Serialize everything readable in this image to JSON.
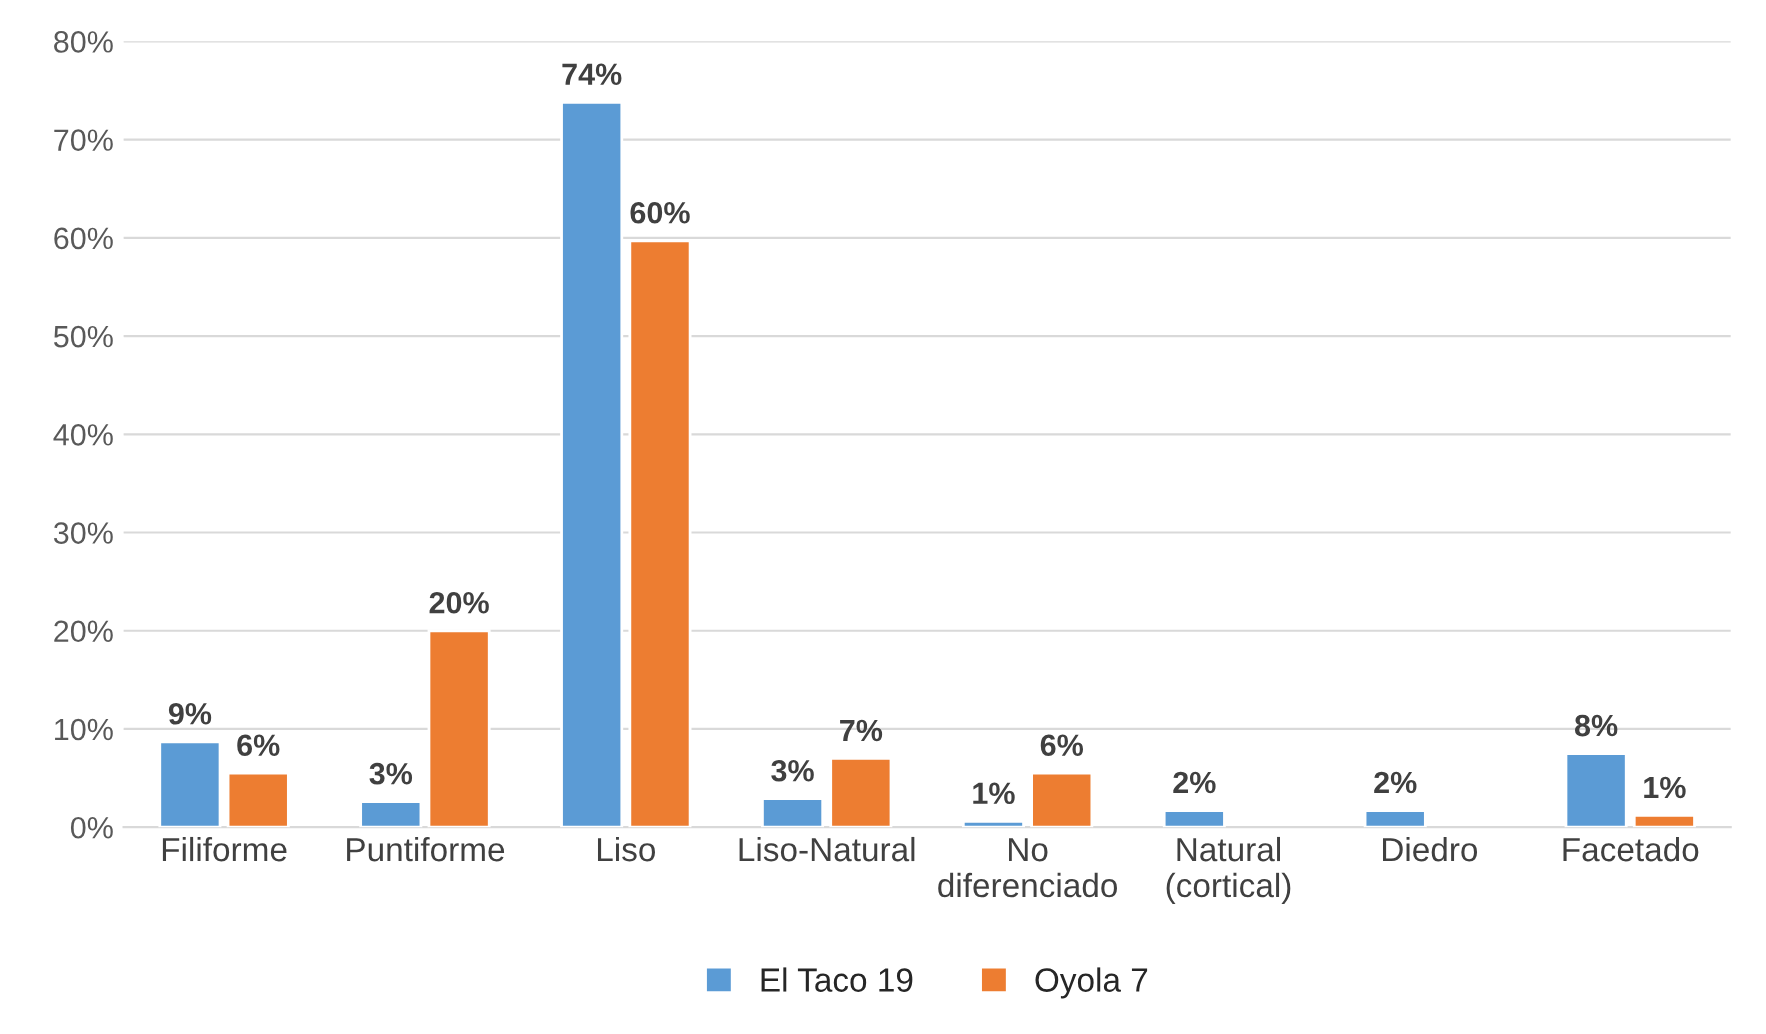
{
  "chart_data": {
    "type": "bar",
    "categories": [
      "Filiforme",
      "Puntiforme",
      "Liso",
      "Liso-Natural",
      "No\ndiferenciado",
      "Natural\n(cortical)",
      "Diedro",
      "Facetado"
    ],
    "series": [
      {
        "name": "El Taco 19",
        "color": "#5b9bd5",
        "values": [
          8.7,
          2.6,
          73.8,
          2.9,
          0.6,
          1.7,
          1.7,
          7.5
        ],
        "value_labels": [
          "9%",
          "3%",
          "74%",
          "3%",
          "1%",
          "2%",
          "2%",
          "8%"
        ]
      },
      {
        "name": "Oyola 7",
        "color": "#ed7d31",
        "values": [
          5.5,
          20,
          59.7,
          7.0,
          5.5,
          null,
          null,
          1.2
        ],
        "value_labels": [
          "6%",
          "20%",
          "60%",
          "7%",
          "6%",
          null,
          null,
          "1%"
        ]
      }
    ],
    "ylim": [
      0,
      80
    ],
    "yticks": [
      {
        "value": 0,
        "label": "0%"
      },
      {
        "value": 10,
        "label": "10%"
      },
      {
        "value": 20,
        "label": "20%"
      },
      {
        "value": 30,
        "label": "30%"
      },
      {
        "value": 40,
        "label": "40%"
      },
      {
        "value": 50,
        "label": "50%"
      },
      {
        "value": 60,
        "label": "60%"
      },
      {
        "value": 70,
        "label": "70%"
      },
      {
        "value": 80,
        "label": "80%"
      }
    ],
    "grid": "y",
    "legend": "bottom"
  }
}
